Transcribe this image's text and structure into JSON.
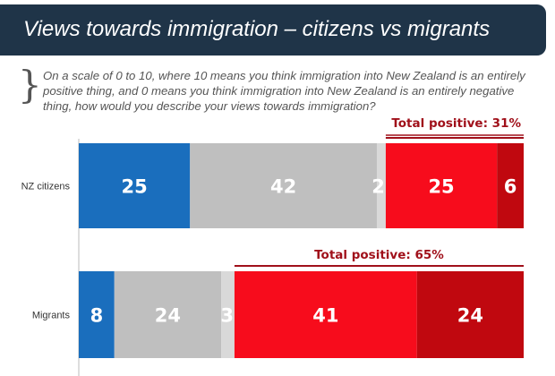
{
  "title": "Views towards immigration – citizens vs migrants",
  "question": "On a scale of 0 to 10, where 10 means you think immigration into New Zealand is an entirely positive thing, and 0 means you think immigration into New Zealand is an entirely negative thing, how would you describe your views towards immigration?",
  "chart_data": {
    "type": "bar",
    "orientation": "horizontal-stacked",
    "categories": [
      "NZ citizens",
      "Migrants"
    ],
    "series": [
      {
        "values": [
          25,
          8
        ],
        "color": "#1a6ebd"
      },
      {
        "values": [
          42,
          24
        ],
        "color": "#bfbfbf"
      },
      {
        "values": [
          2,
          3
        ],
        "color": "#d9d9d9"
      },
      {
        "values": [
          25,
          41
        ],
        "color": "#f70c1c"
      },
      {
        "values": [
          6,
          24
        ],
        "color": "#c0080f"
      }
    ],
    "annotations": [
      "Total positive: 31%",
      "Total positive: 65%"
    ],
    "annotation_color": "#a0101a"
  }
}
